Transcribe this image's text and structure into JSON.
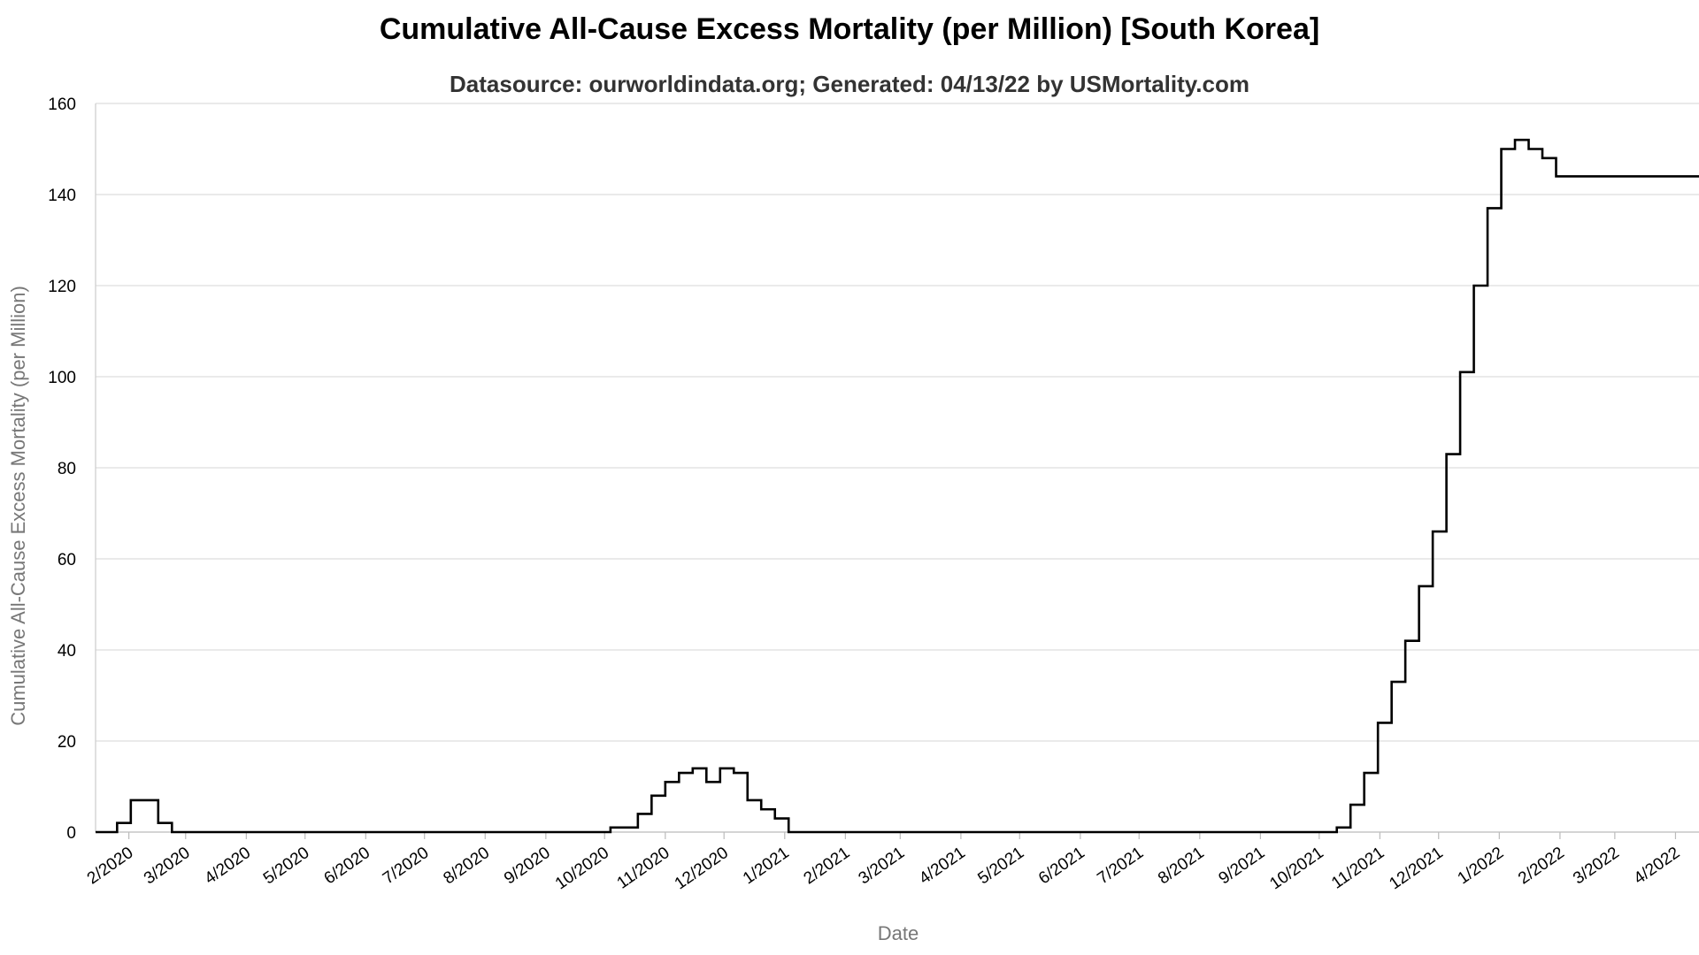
{
  "chart_data": {
    "type": "line",
    "title": "Cumulative All-Cause Excess Mortality (per Million) [South Korea]",
    "subtitle": "Datasource: ourworldindata.org; Generated: 04/13/22 by USMortality.com",
    "xlabel": "Date",
    "ylabel": "Cumulative All-Cause Excess Mortality (per Million)",
    "ylim": [
      0,
      160
    ],
    "yticks": [
      0,
      20,
      40,
      60,
      80,
      100,
      120,
      140,
      160
    ],
    "xticks": [
      "2/2020",
      "3/2020",
      "4/2020",
      "5/2020",
      "6/2020",
      "7/2020",
      "8/2020",
      "9/2020",
      "10/2020",
      "11/2020",
      "12/2020",
      "1/2021",
      "2/2021",
      "3/2021",
      "4/2021",
      "5/2021",
      "6/2021",
      "7/2021",
      "8/2021",
      "9/2021",
      "10/2021",
      "11/2021",
      "12/2021",
      "1/2022",
      "2/2022",
      "3/2022",
      "4/2022"
    ],
    "xlim": [
      "2020-01-15",
      "2022-04-13"
    ],
    "grid": true,
    "line_color": "#000000",
    "series": [
      {
        "values": [
          [
            "2020-01-15",
            0
          ],
          [
            "2020-01-26",
            0
          ],
          [
            "2020-01-26",
            2
          ],
          [
            "2020-02-02",
            2
          ],
          [
            "2020-02-02",
            7
          ],
          [
            "2020-02-16",
            7
          ],
          [
            "2020-02-16",
            2
          ],
          [
            "2020-02-23",
            2
          ],
          [
            "2020-02-23",
            0
          ],
          [
            "2020-10-04",
            0
          ],
          [
            "2020-10-04",
            1
          ],
          [
            "2020-10-18",
            1
          ],
          [
            "2020-10-18",
            4
          ],
          [
            "2020-10-25",
            4
          ],
          [
            "2020-10-25",
            8
          ],
          [
            "2020-11-01",
            8
          ],
          [
            "2020-11-01",
            11
          ],
          [
            "2020-11-08",
            11
          ],
          [
            "2020-11-08",
            13
          ],
          [
            "2020-11-15",
            13
          ],
          [
            "2020-11-15",
            14
          ],
          [
            "2020-11-22",
            14
          ],
          [
            "2020-11-22",
            11
          ],
          [
            "2020-11-29",
            11
          ],
          [
            "2020-11-29",
            14
          ],
          [
            "2020-12-06",
            14
          ],
          [
            "2020-12-06",
            13
          ],
          [
            "2020-12-13",
            13
          ],
          [
            "2020-12-13",
            7
          ],
          [
            "2020-12-20",
            7
          ],
          [
            "2020-12-20",
            5
          ],
          [
            "2020-12-27",
            5
          ],
          [
            "2020-12-27",
            3
          ],
          [
            "2021-01-03",
            3
          ],
          [
            "2021-01-03",
            0
          ],
          [
            "2021-10-10",
            0
          ],
          [
            "2021-10-10",
            1
          ],
          [
            "2021-10-17",
            1
          ],
          [
            "2021-10-17",
            6
          ],
          [
            "2021-10-24",
            6
          ],
          [
            "2021-10-24",
            13
          ],
          [
            "2021-10-31",
            13
          ],
          [
            "2021-10-31",
            24
          ],
          [
            "2021-11-07",
            24
          ],
          [
            "2021-11-07",
            33
          ],
          [
            "2021-11-14",
            33
          ],
          [
            "2021-11-14",
            42
          ],
          [
            "2021-11-21",
            42
          ],
          [
            "2021-11-21",
            54
          ],
          [
            "2021-11-28",
            54
          ],
          [
            "2021-11-28",
            66
          ],
          [
            "2021-12-05",
            66
          ],
          [
            "2021-12-05",
            83
          ],
          [
            "2021-12-12",
            83
          ],
          [
            "2021-12-12",
            101
          ],
          [
            "2021-12-19",
            101
          ],
          [
            "2021-12-19",
            120
          ],
          [
            "2021-12-26",
            120
          ],
          [
            "2021-12-26",
            137
          ],
          [
            "2022-01-02",
            137
          ],
          [
            "2022-01-02",
            150
          ],
          [
            "2022-01-09",
            150
          ],
          [
            "2022-01-09",
            152
          ],
          [
            "2022-01-16",
            152
          ],
          [
            "2022-01-16",
            150
          ],
          [
            "2022-01-23",
            150
          ],
          [
            "2022-01-23",
            148
          ],
          [
            "2022-01-30",
            148
          ],
          [
            "2022-01-30",
            144
          ],
          [
            "2022-04-13",
            144
          ]
        ]
      }
    ]
  }
}
